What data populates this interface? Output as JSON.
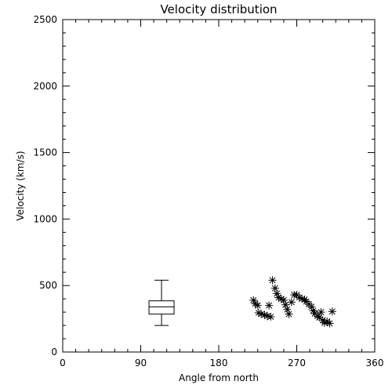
{
  "chart_data": {
    "type": "scatter",
    "title": "Velocity distribution",
    "xlabel": "Angle from north",
    "ylabel": "Velocity (km/s)",
    "xlim": [
      0,
      360
    ],
    "ylim": [
      0,
      2500
    ],
    "xticks": [
      0,
      90,
      180,
      270,
      360
    ],
    "yticks": [
      0,
      500,
      1000,
      1500,
      2000,
      2500
    ],
    "grid": false,
    "marker": "asterisk",
    "boxplot": {
      "x": 114,
      "whisker_low": 200,
      "q1": 285,
      "median": 340,
      "q3": 385,
      "whisker_high": 540
    },
    "points": [
      {
        "x": 220,
        "y": 390
      },
      {
        "x": 222,
        "y": 365
      },
      {
        "x": 225,
        "y": 350
      },
      {
        "x": 226,
        "y": 295
      },
      {
        "x": 229,
        "y": 285
      },
      {
        "x": 233,
        "y": 280
      },
      {
        "x": 236,
        "y": 270
      },
      {
        "x": 238,
        "y": 350
      },
      {
        "x": 240,
        "y": 265
      },
      {
        "x": 242,
        "y": 540
      },
      {
        "x": 245,
        "y": 480
      },
      {
        "x": 247,
        "y": 440
      },
      {
        "x": 249,
        "y": 410
      },
      {
        "x": 252,
        "y": 400
      },
      {
        "x": 255,
        "y": 390
      },
      {
        "x": 257,
        "y": 355
      },
      {
        "x": 259,
        "y": 320
      },
      {
        "x": 261,
        "y": 285
      },
      {
        "x": 264,
        "y": 375
      },
      {
        "x": 267,
        "y": 430
      },
      {
        "x": 270,
        "y": 430
      },
      {
        "x": 273,
        "y": 410
      },
      {
        "x": 276,
        "y": 400
      },
      {
        "x": 279,
        "y": 395
      },
      {
        "x": 281,
        "y": 380
      },
      {
        "x": 284,
        "y": 360
      },
      {
        "x": 287,
        "y": 340
      },
      {
        "x": 289,
        "y": 310
      },
      {
        "x": 291,
        "y": 290
      },
      {
        "x": 294,
        "y": 270
      },
      {
        "x": 296,
        "y": 260
      },
      {
        "x": 298,
        "y": 300
      },
      {
        "x": 300,
        "y": 240
      },
      {
        "x": 302,
        "y": 220
      },
      {
        "x": 305,
        "y": 230
      },
      {
        "x": 308,
        "y": 215
      },
      {
        "x": 311,
        "y": 305
      }
    ]
  }
}
